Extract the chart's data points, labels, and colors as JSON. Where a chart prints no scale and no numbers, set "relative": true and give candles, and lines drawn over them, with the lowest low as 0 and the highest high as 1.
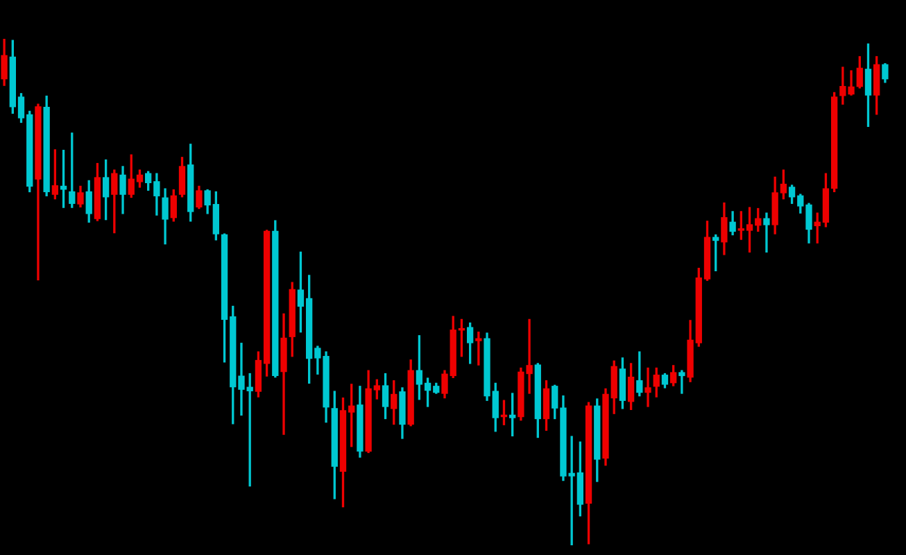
{
  "chart_data": {
    "type": "candlestick",
    "relative": true,
    "categories": [
      null,
      null,
      null,
      null,
      null,
      null,
      null,
      null,
      null,
      null,
      null,
      null,
      null,
      null,
      null,
      null,
      null,
      null,
      null,
      null,
      null,
      null,
      null,
      null,
      null,
      null,
      null,
      null,
      null,
      null,
      null,
      null,
      null,
      null,
      null,
      null,
      null,
      null,
      null,
      null,
      null,
      null,
      null,
      null,
      null,
      null,
      null,
      null,
      null,
      null,
      null,
      null,
      null,
      null,
      null,
      null,
      null,
      null,
      null,
      null,
      null,
      null,
      null,
      null,
      null,
      null,
      null,
      null,
      null,
      null,
      null,
      null,
      null,
      null,
      null,
      null,
      null,
      null,
      null,
      null,
      null,
      null,
      null,
      null,
      null,
      null,
      null,
      null,
      null,
      null,
      null,
      null,
      null,
      null,
      null,
      null,
      null,
      null,
      null,
      null,
      null,
      null,
      null,
      null,
      null
    ],
    "ohlc": [
      [
        0.921,
        1,
        0.908,
        0.967
      ],
      [
        0.964,
        0.997,
        0.853,
        0.866
      ],
      [
        0.885,
        0.892,
        0.835,
        0.844
      ],
      [
        0.85,
        0.857,
        0.698,
        0.709
      ],
      [
        0.723,
        0.871,
        0.524,
        0.866
      ],
      [
        0.865,
        0.887,
        0.69,
        0.698
      ],
      [
        0.693,
        0.781,
        0.684,
        0.71
      ],
      [
        0.709,
        0.78,
        0.667,
        0.703
      ],
      [
        0.698,
        0.814,
        0.667,
        0.675
      ],
      [
        0.674,
        0.709,
        0.668,
        0.696
      ],
      [
        0.698,
        0.72,
        0.638,
        0.655
      ],
      [
        0.645,
        0.754,
        0.641,
        0.726
      ],
      [
        0.726,
        0.761,
        0.643,
        0.688
      ],
      [
        0.693,
        0.741,
        0.617,
        0.734
      ],
      [
        0.731,
        0.748,
        0.655,
        0.693
      ],
      [
        0.693,
        0.771,
        0.687,
        0.723
      ],
      [
        0.718,
        0.741,
        0.707,
        0.731
      ],
      [
        0.734,
        0.738,
        0.701,
        0.716
      ],
      [
        0.718,
        0.734,
        0.652,
        0.69
      ],
      [
        0.686,
        0.704,
        0.595,
        0.644
      ],
      [
        0.647,
        0.702,
        0.64,
        0.69
      ],
      [
        0.693,
        0.766,
        0.688,
        0.748
      ],
      [
        0.751,
        0.792,
        0.64,
        0.659
      ],
      [
        0.668,
        0.709,
        0.665,
        0.7
      ],
      [
        0.7,
        0.702,
        0.655,
        0.672
      ],
      [
        0.673,
        0.698,
        0.603,
        0.615
      ],
      [
        0.613,
        0.615,
        0.362,
        0.446
      ],
      [
        0.451,
        0.472,
        0.24,
        0.313
      ],
      [
        0.334,
        0.399,
        0.257,
        0.308
      ],
      [
        0.312,
        0.339,
        0.117,
        0.305
      ],
      [
        0.304,
        0.382,
        0.293,
        0.365
      ],
      [
        0.359,
        0.622,
        0.334,
        0.62
      ],
      [
        0.62,
        0.641,
        0.332,
        0.335
      ],
      [
        0.343,
        0.457,
        0.219,
        0.409
      ],
      [
        0.412,
        0.519,
        0.373,
        0.505
      ],
      [
        0.504,
        0.579,
        0.421,
        0.472
      ],
      [
        0.487,
        0.533,
        0.32,
        0.369
      ],
      [
        0.389,
        0.393,
        0.338,
        0.37
      ],
      [
        0.373,
        0.382,
        0.243,
        0.273
      ],
      [
        0.27,
        0.304,
        0.092,
        0.156
      ],
      [
        0.146,
        0.291,
        0.076,
        0.266
      ],
      [
        0.263,
        0.318,
        0.195,
        0.275
      ],
      [
        0.277,
        0.314,
        0.174,
        0.186
      ],
      [
        0.186,
        0.345,
        0.183,
        0.309
      ],
      [
        0.307,
        0.327,
        0.289,
        0.315
      ],
      [
        0.315,
        0.339,
        0.25,
        0.274
      ],
      [
        0.27,
        0.325,
        0.239,
        0.298
      ],
      [
        0.303,
        0.311,
        0.211,
        0.239
      ],
      [
        0.239,
        0.366,
        0.236,
        0.345
      ],
      [
        0.345,
        0.414,
        0.288,
        0.318
      ],
      [
        0.32,
        0.33,
        0.274,
        0.306
      ],
      [
        0.314,
        0.32,
        0.3,
        0.302
      ],
      [
        0.3,
        0.345,
        0.291,
        0.338
      ],
      [
        0.335,
        0.452,
        0.331,
        0.425
      ],
      [
        0.425,
        0.446,
        0.373,
        0.428
      ],
      [
        0.43,
        0.439,
        0.359,
        0.4
      ],
      [
        0.404,
        0.421,
        0.356,
        0.408
      ],
      [
        0.408,
        0.419,
        0.286,
        0.295
      ],
      [
        0.304,
        0.32,
        0.225,
        0.252
      ],
      [
        0.254,
        0.286,
        0.238,
        0.257
      ],
      [
        0.257,
        0.3,
        0.216,
        0.252
      ],
      [
        0.254,
        0.35,
        0.247,
        0.342
      ],
      [
        0.339,
        0.446,
        0.3,
        0.355
      ],
      [
        0.356,
        0.359,
        0.213,
        0.25
      ],
      [
        0.25,
        0.325,
        0.227,
        0.309
      ],
      [
        0.314,
        0.316,
        0.25,
        0.271
      ],
      [
        0.271,
        0.295,
        0.128,
        0.137
      ],
      [
        0.142,
        0.215,
        0,
        0.137
      ],
      [
        0.143,
        0.204,
        0.058,
        0.081
      ],
      [
        0.083,
        0.282,
        0.003,
        0.275
      ],
      [
        0.275,
        0.289,
        0.126,
        0.17
      ],
      [
        0.172,
        0.309,
        0.158,
        0.298
      ],
      [
        0.291,
        0.364,
        0.26,
        0.353
      ],
      [
        0.348,
        0.37,
        0.27,
        0.286
      ],
      [
        0.284,
        0.359,
        0.268,
        0.332
      ],
      [
        0.325,
        0.382,
        0.295,
        0.302
      ],
      [
        0.302,
        0.35,
        0.274,
        0.311
      ],
      [
        0.314,
        0.35,
        0.293,
        0.336
      ],
      [
        0.336,
        0.339,
        0.311,
        0.318
      ],
      [
        0.321,
        0.355,
        0.315,
        0.341
      ],
      [
        0.341,
        0.345,
        0.3,
        0.335
      ],
      [
        0.332,
        0.444,
        0.323,
        0.405
      ],
      [
        0.4,
        0.547,
        0.393,
        0.528
      ],
      [
        0.526,
        0.64,
        0.523,
        0.608
      ],
      [
        0.608,
        0.613,
        0.542,
        0.602
      ],
      [
        0.599,
        0.676,
        0.574,
        0.647
      ],
      [
        0.638,
        0.659,
        0.613,
        0.62
      ],
      [
        0.622,
        0.659,
        0.604,
        0.625
      ],
      [
        0.622,
        0.667,
        0.579,
        0.633
      ],
      [
        0.632,
        0.665,
        0.62,
        0.645
      ],
      [
        0.645,
        0.656,
        0.579,
        0.633
      ],
      [
        0.633,
        0.727,
        0.615,
        0.696
      ],
      [
        0.696,
        0.741,
        0.684,
        0.713
      ],
      [
        0.707,
        0.711,
        0.675,
        0.688
      ],
      [
        0.69,
        0.693,
        0.656,
        0.67
      ],
      [
        0.672,
        0.675,
        0.597,
        0.624
      ],
      [
        0.631,
        0.656,
        0.597,
        0.638
      ],
      [
        0.638,
        0.734,
        0.629,
        0.704
      ],
      [
        0.705,
        0.894,
        0.698,
        0.885
      ],
      [
        0.888,
        0.944,
        0.871,
        0.906
      ],
      [
        0.891,
        0.937,
        0.889,
        0.905
      ],
      [
        0.906,
        0.965,
        0.903,
        0.942
      ],
      [
        0.94,
        0.99,
        0.827,
        0.889
      ],
      [
        0.889,
        0.965,
        0.851,
        0.949
      ],
      [
        0.949,
        0.951,
        0.914,
        0.921
      ]
    ],
    "colors": [
      "#ee0000",
      "#00c8d2",
      "#00c8d2",
      "#00c8d2",
      "#ee0000",
      "#00c8d2",
      "#ee0000",
      "#00c8d2",
      "#00c8d2",
      "#ee0000",
      "#00c8d2",
      "#ee0000",
      "#00c8d2",
      "#ee0000",
      "#00c8d2",
      "#ee0000",
      "#ee0000",
      "#00c8d2",
      "#00c8d2",
      "#00c8d2",
      "#ee0000",
      "#ee0000",
      "#00c8d2",
      "#ee0000",
      "#00c8d2",
      "#00c8d2",
      "#00c8d2",
      "#00c8d2",
      "#00c8d2",
      "#00c8d2",
      "#ee0000",
      "#ee0000",
      "#00c8d2",
      "#ee0000",
      "#ee0000",
      "#00c8d2",
      "#00c8d2",
      "#00c8d2",
      "#00c8d2",
      "#00c8d2",
      "#ee0000",
      "#ee0000",
      "#00c8d2",
      "#ee0000",
      "#ee0000",
      "#00c8d2",
      "#ee0000",
      "#00c8d2",
      "#ee0000",
      "#00c8d2",
      "#00c8d2",
      "#00c8d2",
      "#ee0000",
      "#ee0000",
      "#ee0000",
      "#00c8d2",
      "#ee0000",
      "#00c8d2",
      "#00c8d2",
      "#ee0000",
      "#00c8d2",
      "#ee0000",
      "#ee0000",
      "#00c8d2",
      "#ee0000",
      "#00c8d2",
      "#00c8d2",
      "#00c8d2",
      "#00c8d2",
      "#ee0000",
      "#00c8d2",
      "#ee0000",
      "#ee0000",
      "#00c8d2",
      "#ee0000",
      "#00c8d2",
      "#ee0000",
      "#ee0000",
      "#00c8d2",
      "#ee0000",
      "#00c8d2",
      "#ee0000",
      "#ee0000",
      "#ee0000",
      "#00c8d2",
      "#ee0000",
      "#00c8d2",
      "#ee0000",
      "#ee0000",
      "#ee0000",
      "#00c8d2",
      "#ee0000",
      "#ee0000",
      "#00c8d2",
      "#00c8d2",
      "#00c8d2",
      "#ee0000",
      "#ee0000",
      "#ee0000",
      "#ee0000",
      "#ee0000",
      "#ee0000",
      "#00c8d2",
      "#ee0000",
      "#00c8d2"
    ]
  }
}
